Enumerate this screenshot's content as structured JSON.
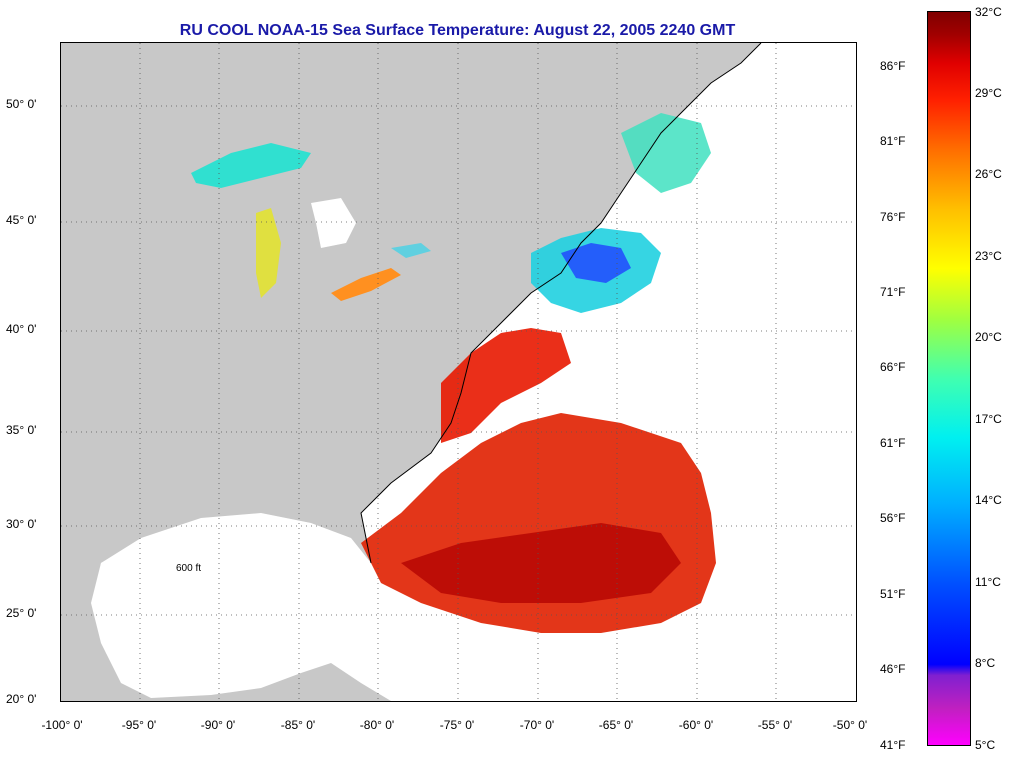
{
  "title": "RU COOL  NOAA-15  Sea Surface Temperature:  August 22, 2005 2240 GMT",
  "map": {
    "latitude_labels": [
      "50° 0'",
      "45° 0'",
      "40° 0'",
      "35° 0'",
      "30° 0'",
      "25° 0'",
      "20° 0'"
    ],
    "longitude_labels": [
      "-100° 0'",
      "-95° 0'",
      "-90° 0'",
      "-85° 0'",
      "-80° 0'",
      "-75° 0'",
      "-70° 0'",
      "-65° 0'",
      "-60° 0'",
      "-55° 0'",
      "-50° 0'"
    ],
    "contour_label": "600 ft",
    "colors": {
      "land": "#c8c8c8",
      "cloud_no_data": "#ffffff",
      "coastline": "#000000"
    }
  },
  "colorbar": {
    "celsius_labels": [
      "32°C",
      "29°C",
      "26°C",
      "23°C",
      "20°C",
      "17°C",
      "14°C",
      "11°C",
      "8°C",
      "5°C"
    ],
    "fahrenheit_labels": [
      "86°F",
      "81°F",
      "76°F",
      "71°F",
      "66°F",
      "61°F",
      "56°F",
      "51°F",
      "46°F",
      "41°F"
    ]
  }
}
